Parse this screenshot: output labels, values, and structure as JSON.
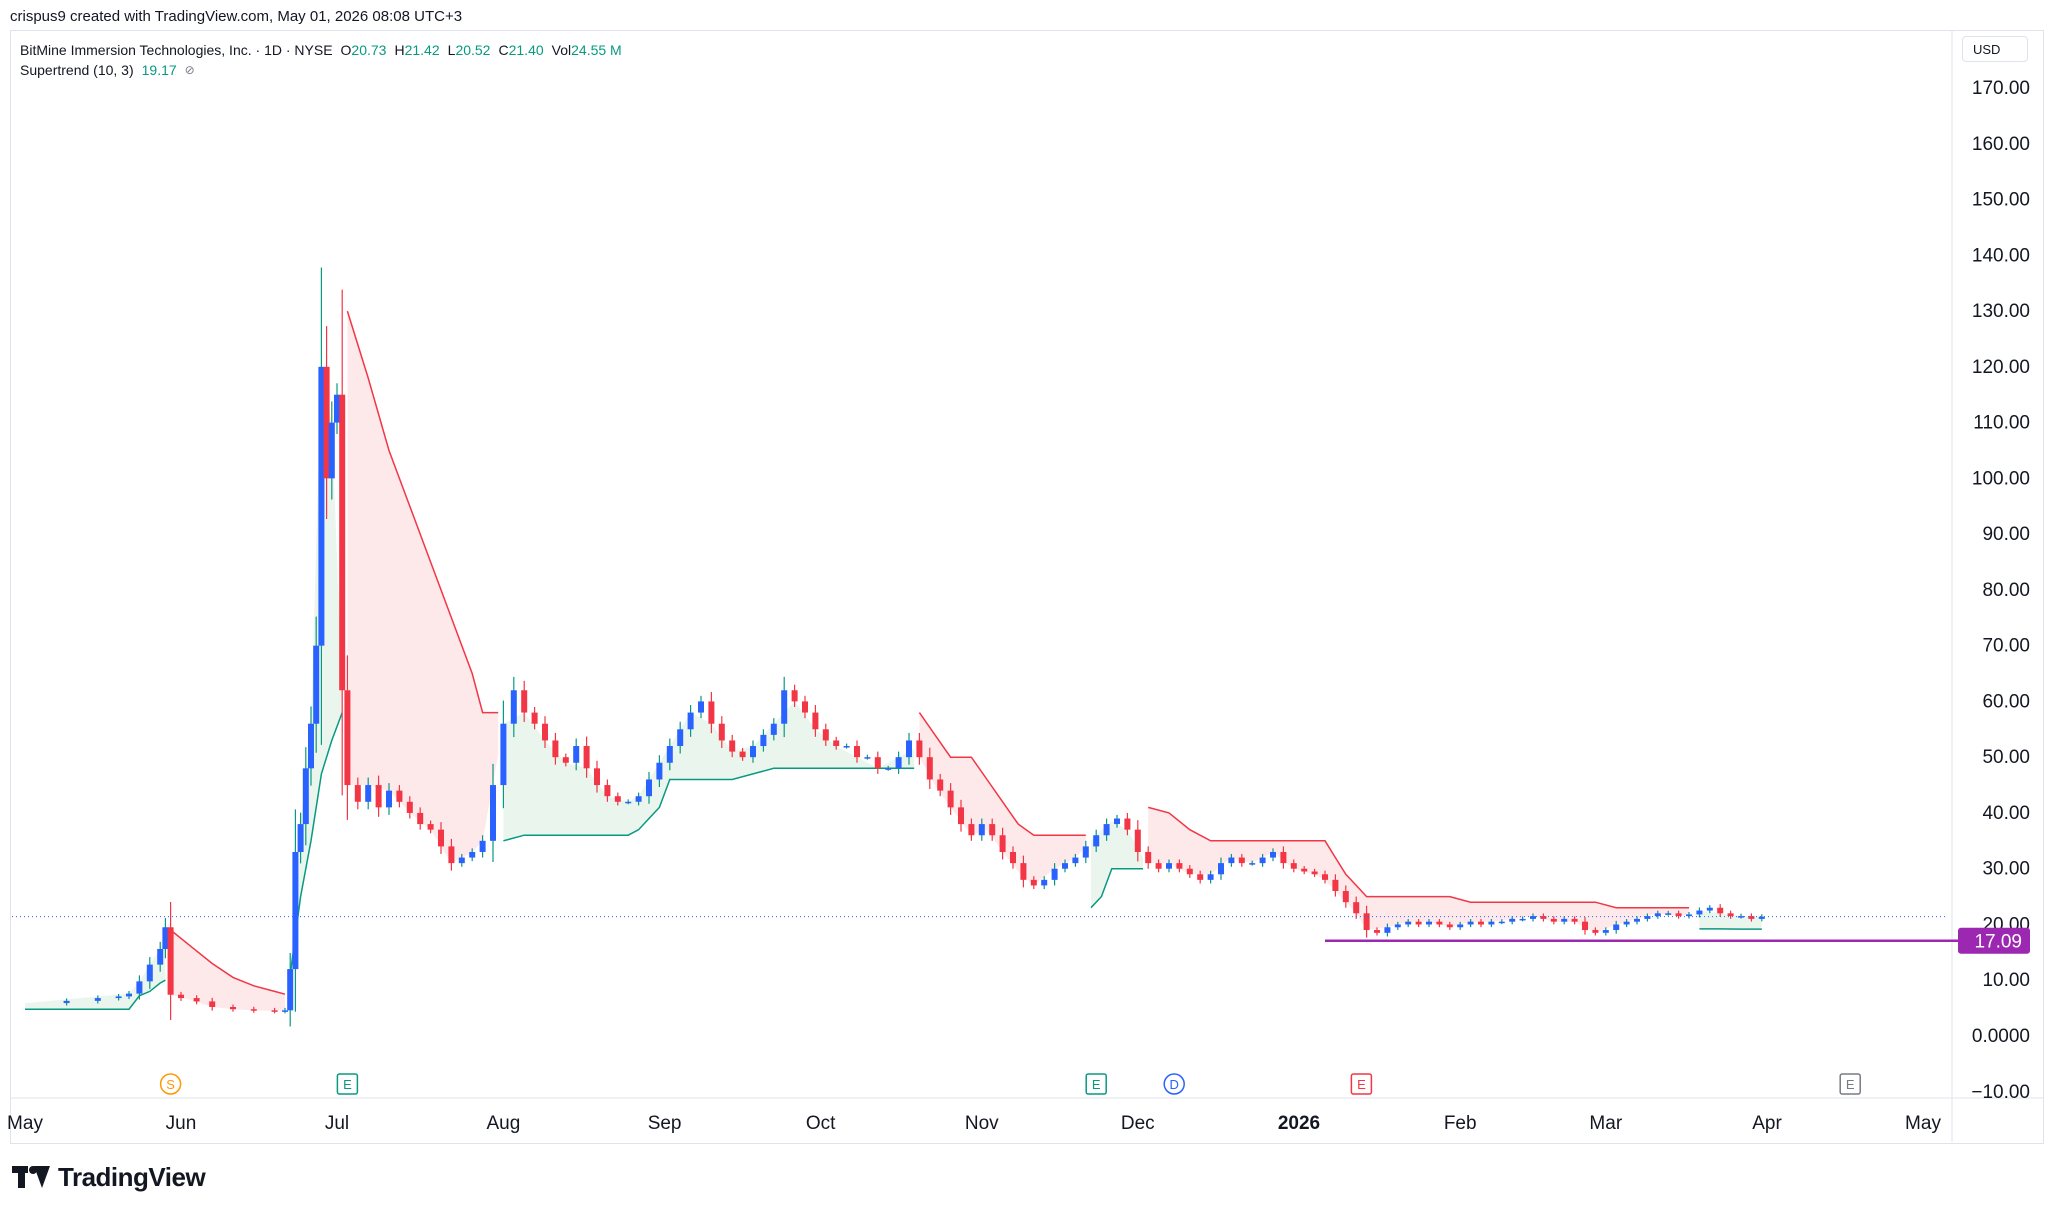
{
  "header": {
    "attribution": "crispus9 created with TradingView.com, May 01, 2026 08:08 UTC+3"
  },
  "legend": {
    "symbol": "BitMine Immersion Technologies, Inc. · 1D · NYSE",
    "open_label": "O",
    "open": "20.73",
    "high_label": "H",
    "high": "21.42",
    "low_label": "L",
    "low": "20.52",
    "close_label": "C",
    "close": "21.40",
    "vol_label": "Vol",
    "vol": "24.55 M",
    "indicator": "Supertrend (10, 3)",
    "indicator_value": "19.17",
    "eye_glyph": "⊘"
  },
  "currency": "USD",
  "price_tag": "17.09",
  "logo_text": "TradingView",
  "colors": {
    "up": "#2962ff",
    "down": "#f23645",
    "supertrend_up": "#089981",
    "supertrend_down": "#f23645",
    "fill_up": "#e6f4ea",
    "fill_down": "#fde4e6",
    "level_line": "#9c27b0",
    "last_price_line": "#2962ff"
  },
  "chart_data": {
    "type": "candlestick",
    "y_ticks": [
      "170.00",
      "160.00",
      "150.00",
      "140.00",
      "130.00",
      "120.00",
      "110.00",
      "100.00",
      "90.00",
      "80.00",
      "70.00",
      "60.00",
      "50.00",
      "40.00",
      "30.00",
      "20.00",
      "10.00",
      "0.0000",
      "−10.00"
    ],
    "ylim": [
      -10,
      170
    ],
    "x_labels": [
      {
        "t": 0,
        "label": "May",
        "bold": false
      },
      {
        "t": 30,
        "label": "Jun",
        "bold": false
      },
      {
        "t": 60,
        "label": "Jul",
        "bold": false
      },
      {
        "t": 92,
        "label": "Aug",
        "bold": false
      },
      {
        "t": 123,
        "label": "Sep",
        "bold": false
      },
      {
        "t": 153,
        "label": "Oct",
        "bold": false
      },
      {
        "t": 184,
        "label": "Nov",
        "bold": false
      },
      {
        "t": 214,
        "label": "Dec",
        "bold": false
      },
      {
        "t": 245,
        "label": "2026",
        "bold": true
      },
      {
        "t": 276,
        "label": "Feb",
        "bold": false
      },
      {
        "t": 304,
        "label": "Mar",
        "bold": false
      },
      {
        "t": 335,
        "label": "Apr",
        "bold": false
      },
      {
        "t": 365,
        "label": "May",
        "bold": false
      }
    ],
    "events": [
      {
        "t": 28,
        "letter": "S",
        "color": "#ff9800"
      },
      {
        "t": 62,
        "letter": "E",
        "color": "#089981"
      },
      {
        "t": 206,
        "letter": "E",
        "color": "#089981"
      },
      {
        "t": 221,
        "letter": "D",
        "color": "#2962ff"
      },
      {
        "t": 257,
        "letter": "E",
        "color": "#f23645"
      },
      {
        "t": 351,
        "letter": "E",
        "color": "#787b86"
      }
    ],
    "support_level": {
      "value": 17.09,
      "t_start": 250,
      "t_end": 376
    },
    "last_price": 21.4,
    "price_path": [
      [
        0,
        5.9
      ],
      [
        8,
        6.3
      ],
      [
        14,
        6.8
      ],
      [
        18,
        7.1
      ],
      [
        20,
        7.6
      ],
      [
        22,
        9.8
      ],
      [
        24,
        12.8
      ],
      [
        26,
        15.6
      ],
      [
        27,
        19.5
      ],
      [
        28,
        7.4
      ],
      [
        30,
        6.8
      ],
      [
        33,
        6.2
      ],
      [
        36,
        5.2
      ],
      [
        40,
        4.8
      ],
      [
        44,
        4.6
      ],
      [
        48,
        4.5
      ],
      [
        50,
        4.6
      ],
      [
        51,
        12.0
      ],
      [
        52,
        33.0
      ],
      [
        53,
        38.0
      ],
      [
        54,
        48.0
      ],
      [
        55,
        56.0
      ],
      [
        56,
        70.0
      ],
      [
        57,
        120.0
      ],
      [
        58,
        100.0
      ],
      [
        59,
        110.0
      ],
      [
        60,
        115.0
      ],
      [
        61,
        62.0
      ],
      [
        62,
        45.0
      ],
      [
        64,
        42.0
      ],
      [
        66,
        45.0
      ],
      [
        68,
        41.0
      ],
      [
        70,
        44.0
      ],
      [
        72,
        42.0
      ],
      [
        74,
        40.0
      ],
      [
        76,
        38.0
      ],
      [
        78,
        37.0
      ],
      [
        80,
        34.0
      ],
      [
        82,
        31.0
      ],
      [
        84,
        32.0
      ],
      [
        86,
        33.0
      ],
      [
        88,
        35.0
      ],
      [
        90,
        45.0
      ],
      [
        92,
        56.0
      ],
      [
        94,
        62.0
      ],
      [
        96,
        58.0
      ],
      [
        98,
        56.0
      ],
      [
        100,
        53.0
      ],
      [
        102,
        50.0
      ],
      [
        104,
        49.0
      ],
      [
        106,
        52.0
      ],
      [
        108,
        48.0
      ],
      [
        110,
        45.0
      ],
      [
        112,
        43.0
      ],
      [
        114,
        42.0
      ],
      [
        116,
        42.0
      ],
      [
        118,
        43.0
      ],
      [
        120,
        46.0
      ],
      [
        122,
        49.0
      ],
      [
        124,
        52.0
      ],
      [
        126,
        55.0
      ],
      [
        128,
        58.0
      ],
      [
        130,
        60.0
      ],
      [
        132,
        56.0
      ],
      [
        134,
        53.0
      ],
      [
        136,
        51.0
      ],
      [
        138,
        50.0
      ],
      [
        140,
        52.0
      ],
      [
        142,
        54.0
      ],
      [
        144,
        56.0
      ],
      [
        146,
        62.0
      ],
      [
        148,
        60.0
      ],
      [
        150,
        58.0
      ],
      [
        152,
        55.0
      ],
      [
        154,
        53.0
      ],
      [
        156,
        52.0
      ],
      [
        158,
        52.0
      ],
      [
        160,
        50.0
      ],
      [
        162,
        50.0
      ],
      [
        164,
        48.0
      ],
      [
        166,
        48.0
      ],
      [
        168,
        50.0
      ],
      [
        170,
        53.0
      ],
      [
        172,
        50.0
      ],
      [
        174,
        46.0
      ],
      [
        176,
        44.0
      ],
      [
        178,
        41.0
      ],
      [
        180,
        38.0
      ],
      [
        182,
        36.0
      ],
      [
        184,
        38.0
      ],
      [
        186,
        36.0
      ],
      [
        188,
        33.0
      ],
      [
        190,
        31.0
      ],
      [
        192,
        28.0
      ],
      [
        194,
        27.0
      ],
      [
        196,
        28.0
      ],
      [
        198,
        30.0
      ],
      [
        200,
        31.0
      ],
      [
        202,
        32.0
      ],
      [
        204,
        34.0
      ],
      [
        206,
        36.0
      ],
      [
        208,
        38.0
      ],
      [
        210,
        39.0
      ],
      [
        212,
        37.0
      ],
      [
        214,
        33.0
      ],
      [
        216,
        31.0
      ],
      [
        218,
        30.0
      ],
      [
        220,
        31.0
      ],
      [
        222,
        30.0
      ],
      [
        224,
        29.0
      ],
      [
        226,
        28.0
      ],
      [
        228,
        29.0
      ],
      [
        230,
        31.0
      ],
      [
        232,
        32.0
      ],
      [
        234,
        31.0
      ],
      [
        236,
        31.0
      ],
      [
        238,
        32.0
      ],
      [
        240,
        33.0
      ],
      [
        242,
        31.0
      ],
      [
        244,
        30.0
      ],
      [
        246,
        29.5
      ],
      [
        248,
        29.0
      ],
      [
        250,
        28.0
      ],
      [
        252,
        26.0
      ],
      [
        254,
        24.0
      ],
      [
        256,
        22.0
      ],
      [
        258,
        19.0
      ],
      [
        260,
        18.5
      ],
      [
        262,
        19.5
      ],
      [
        264,
        20.0
      ],
      [
        266,
        20.5
      ],
      [
        268,
        20.0
      ],
      [
        270,
        20.5
      ],
      [
        272,
        20.0
      ],
      [
        274,
        19.5
      ],
      [
        276,
        20.0
      ],
      [
        278,
        20.5
      ],
      [
        280,
        20.0
      ],
      [
        282,
        20.5
      ],
      [
        284,
        20.5
      ],
      [
        286,
        21.0
      ],
      [
        288,
        21.0
      ],
      [
        290,
        21.5
      ],
      [
        292,
        21.0
      ],
      [
        294,
        20.5
      ],
      [
        296,
        21.0
      ],
      [
        298,
        20.5
      ],
      [
        300,
        19.0
      ],
      [
        302,
        18.5
      ],
      [
        304,
        19.0
      ],
      [
        306,
        20.0
      ],
      [
        308,
        20.5
      ],
      [
        310,
        21.0
      ],
      [
        312,
        21.5
      ],
      [
        314,
        22.0
      ],
      [
        316,
        22.0
      ],
      [
        318,
        21.5
      ],
      [
        320,
        21.8
      ],
      [
        322,
        22.5
      ],
      [
        324,
        23.0
      ],
      [
        326,
        22.0
      ],
      [
        328,
        21.5
      ],
      [
        330,
        21.5
      ],
      [
        332,
        21.0
      ],
      [
        334,
        21.4
      ]
    ],
    "supertrend_segments": [
      {
        "dir": "up",
        "points": [
          [
            0,
            4.8
          ],
          [
            20,
            4.8
          ],
          [
            22,
            7.2
          ],
          [
            24,
            8.0
          ],
          [
            26,
            9.5
          ],
          [
            27,
            10.0
          ]
        ]
      },
      {
        "dir": "down",
        "points": [
          [
            28,
            19.0
          ],
          [
            32,
            16.0
          ],
          [
            36,
            13.0
          ],
          [
            40,
            10.5
          ],
          [
            44,
            9.0
          ],
          [
            48,
            8.0
          ],
          [
            50,
            7.5
          ]
        ]
      },
      {
        "dir": "up",
        "points": [
          [
            51,
            11.0
          ],
          [
            53,
            25.0
          ],
          [
            55,
            35.0
          ],
          [
            57,
            47.0
          ],
          [
            59,
            53.0
          ],
          [
            61,
            58.0
          ]
        ]
      },
      {
        "dir": "down",
        "points": [
          [
            62,
            130.0
          ],
          [
            66,
            118.0
          ],
          [
            70,
            105.0
          ],
          [
            74,
            95.0
          ],
          [
            78,
            85.0
          ],
          [
            82,
            75.0
          ],
          [
            86,
            65.0
          ],
          [
            88,
            58.0
          ],
          [
            91,
            58.0
          ]
        ]
      },
      {
        "dir": "up",
        "points": [
          [
            92,
            35.0
          ],
          [
            96,
            36.0
          ],
          [
            100,
            36.0
          ],
          [
            104,
            36.0
          ],
          [
            108,
            36.0
          ],
          [
            112,
            36.0
          ],
          [
            116,
            36.0
          ],
          [
            118,
            37.0
          ],
          [
            120,
            39.0
          ],
          [
            122,
            41.0
          ],
          [
            124,
            46.0
          ],
          [
            128,
            46.0
          ],
          [
            132,
            46.0
          ],
          [
            136,
            46.0
          ],
          [
            140,
            47.0
          ],
          [
            144,
            48.0
          ],
          [
            148,
            48.0
          ],
          [
            152,
            48.0
          ],
          [
            156,
            48.0
          ],
          [
            160,
            48.0
          ],
          [
            164,
            48.0
          ],
          [
            168,
            48.0
          ],
          [
            171,
            48.0
          ]
        ]
      },
      {
        "dir": "down",
        "points": [
          [
            172,
            58.0
          ],
          [
            175,
            54.0
          ],
          [
            178,
            50.0
          ],
          [
            182,
            50.0
          ],
          [
            185,
            46.0
          ],
          [
            188,
            42.0
          ],
          [
            191,
            38.0
          ],
          [
            194,
            36.0
          ],
          [
            198,
            36.0
          ],
          [
            202,
            36.0
          ],
          [
            204,
            36.0
          ]
        ]
      },
      {
        "dir": "up",
        "points": [
          [
            205,
            23.0
          ],
          [
            207,
            25.0
          ],
          [
            209,
            30.0
          ],
          [
            212,
            30.0
          ],
          [
            215,
            30.0
          ]
        ]
      },
      {
        "dir": "down",
        "points": [
          [
            216,
            41.0
          ],
          [
            220,
            40.0
          ],
          [
            224,
            37.0
          ],
          [
            228,
            35.0
          ],
          [
            232,
            35.0
          ],
          [
            236,
            35.0
          ],
          [
            240,
            35.0
          ],
          [
            244,
            35.0
          ],
          [
            248,
            35.0
          ],
          [
            250,
            35.0
          ],
          [
            252,
            32.0
          ],
          [
            254,
            29.0
          ],
          [
            256,
            27.0
          ],
          [
            258,
            25.0
          ],
          [
            262,
            25.0
          ],
          [
            266,
            25.0
          ],
          [
            270,
            25.0
          ],
          [
            274,
            25.0
          ],
          [
            278,
            24.0
          ],
          [
            282,
            24.0
          ],
          [
            286,
            24.0
          ],
          [
            290,
            24.0
          ],
          [
            294,
            24.0
          ],
          [
            298,
            24.0
          ],
          [
            302,
            24.0
          ],
          [
            306,
            23.0
          ],
          [
            310,
            23.0
          ],
          [
            314,
            23.0
          ],
          [
            318,
            23.0
          ],
          [
            320,
            23.0
          ]
        ]
      },
      {
        "dir": "up",
        "points": [
          [
            322,
            19.2
          ],
          [
            326,
            19.2
          ],
          [
            330,
            19.17
          ],
          [
            334,
            19.17
          ]
        ]
      }
    ]
  }
}
